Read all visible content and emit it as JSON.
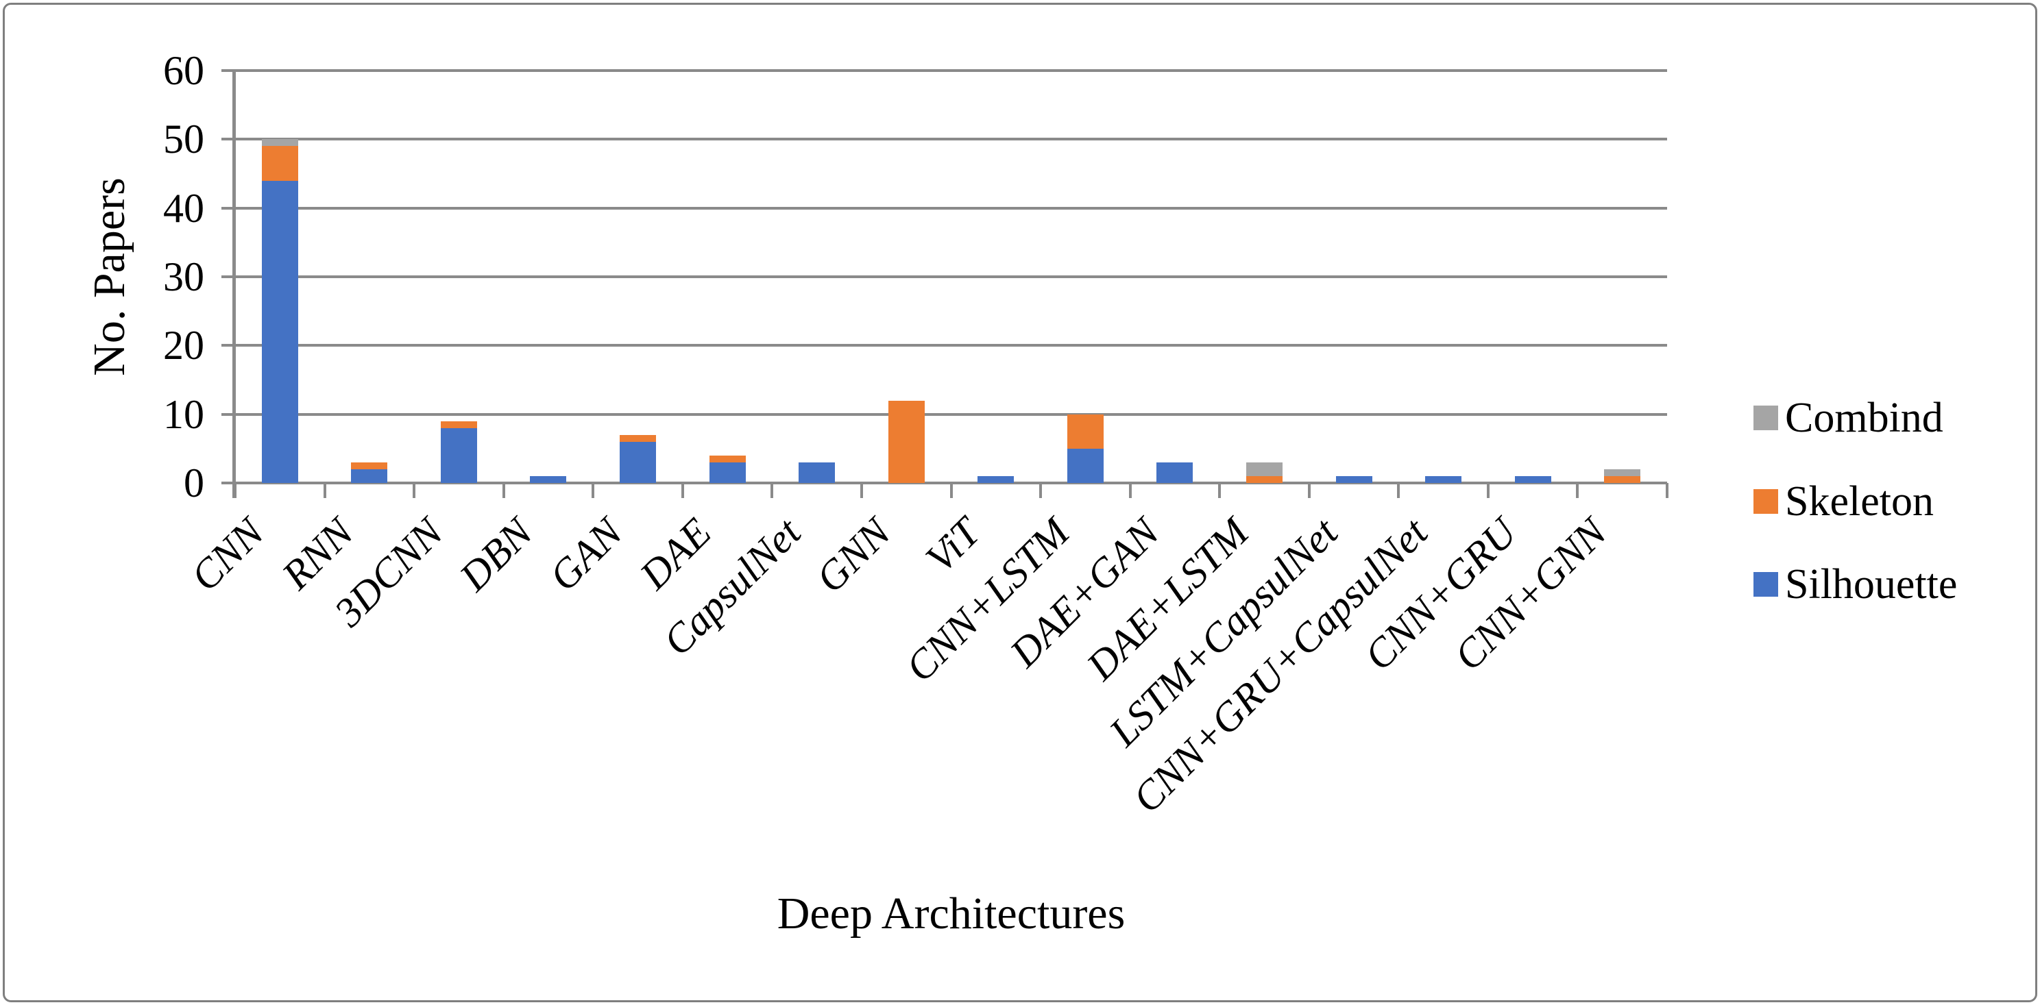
{
  "chart_data": {
    "type": "bar",
    "stacked": true,
    "title": "",
    "xlabel": "Deep Architectures",
    "ylabel": "No. Papers",
    "ylim": [
      0,
      60
    ],
    "yticks": [
      0,
      10,
      20,
      30,
      40,
      50,
      60
    ],
    "grid": true,
    "categories": [
      "CNN",
      "RNN",
      "3DCNN",
      "DBN",
      "GAN",
      "DAE",
      "CapsulNet",
      "GNN",
      "ViT",
      "CNN+LSTM",
      "DAE+GAN",
      "DAE+LSTM",
      "LSTM+CapsulNet",
      "CNN+GRU+CapsulNet",
      "CNN+GRU",
      "CNN+GNN"
    ],
    "series": [
      {
        "name": "Silhouette",
        "color": "#4472C4",
        "values": [
          44,
          2,
          8,
          1,
          6,
          3,
          3,
          0,
          1,
          5,
          3,
          0,
          1,
          1,
          1,
          0
        ]
      },
      {
        "name": "Skeleton",
        "color": "#ED7D31",
        "values": [
          5,
          1,
          1,
          0,
          1,
          1,
          0,
          12,
          0,
          5,
          0,
          1,
          0,
          0,
          0,
          1
        ]
      },
      {
        "name": "Combind",
        "color": "#A5A5A5",
        "values": [
          1,
          0,
          0,
          0,
          0,
          0,
          0,
          0,
          0,
          0,
          0,
          2,
          0,
          0,
          0,
          1
        ]
      }
    ],
    "legend": {
      "position": "right",
      "entries_top_to_bottom": [
        "Combind",
        "Skeleton",
        "Silhouette"
      ]
    },
    "colors": {
      "gridline": "#8a8a8a",
      "axis": "#8a8a8a",
      "border": "#7f7f7f",
      "background": "#ffffff"
    }
  }
}
